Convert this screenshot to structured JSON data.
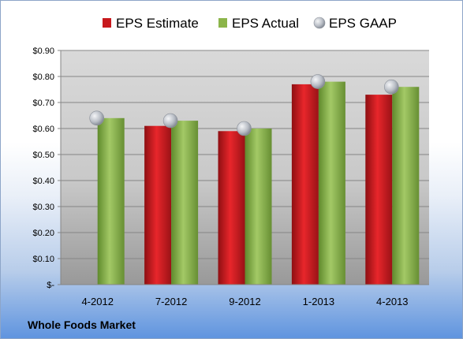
{
  "chart_data": {
    "type": "bar",
    "categories": [
      "4-2012",
      "7-2012",
      "9-2012",
      "1-2013",
      "4-2013"
    ],
    "series": [
      {
        "name": "EPS Estimate",
        "kind": "bar",
        "color": "#c8191d",
        "values": [
          null,
          0.61,
          0.59,
          0.77,
          0.73
        ]
      },
      {
        "name": "EPS Actual",
        "kind": "bar",
        "color": "#8cb54a",
        "values": [
          0.64,
          0.63,
          0.6,
          0.78,
          0.76
        ]
      },
      {
        "name": "EPS GAAP",
        "kind": "marker",
        "color": "#b9bec6",
        "values": [
          0.64,
          0.63,
          0.6,
          0.78,
          0.76
        ]
      }
    ],
    "y_ticks": [
      0,
      0.1,
      0.2,
      0.3,
      0.4,
      0.5,
      0.6,
      0.7,
      0.8,
      0.9
    ],
    "y_tick_labels": [
      "$-",
      "$0.10",
      "$0.20",
      "$0.30",
      "$0.40",
      "$0.50",
      "$0.60",
      "$0.70",
      "$0.80",
      "$0.90"
    ],
    "ylim": [
      0,
      0.9
    ],
    "grid": true,
    "legend_position": "top",
    "title": "",
    "xlabel": "",
    "ylabel": ""
  },
  "footer": {
    "label": "Whole Foods Market"
  }
}
